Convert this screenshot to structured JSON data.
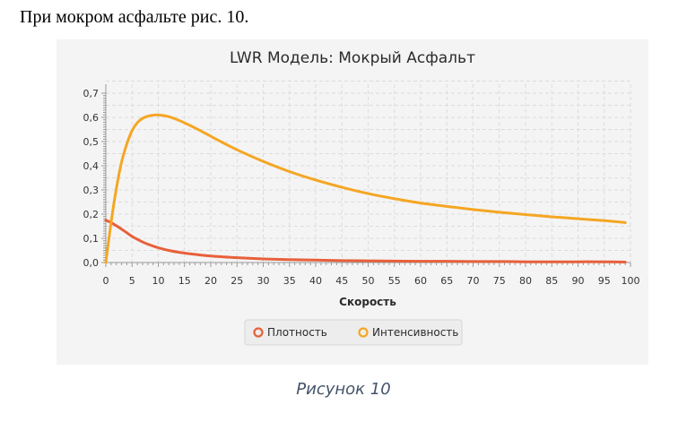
{
  "document": {
    "intro_text": "При мокром асфальте рис. 10.",
    "caption": "Рисунок 10",
    "caption_color": "#44546a"
  },
  "chart_data": {
    "type": "line",
    "title": "LWR Модель: Мокрый Асфальт",
    "xlabel": "Скорость",
    "ylabel": "",
    "xlim": [
      0,
      100
    ],
    "ylim": [
      0,
      0.7
    ],
    "x_ticks": [
      "0",
      "5",
      "10",
      "15",
      "20",
      "25",
      "30",
      "35",
      "40",
      "45",
      "50",
      "55",
      "60",
      "65",
      "70",
      "75",
      "80",
      "85",
      "90",
      "95",
      "100"
    ],
    "y_ticks": [
      "0,0",
      "0,1",
      "0,2",
      "0,3",
      "0,4",
      "0,5",
      "0,6",
      "0,7"
    ],
    "grid": true,
    "legend_position": "bottom",
    "x": [
      0,
      1,
      2,
      3,
      4,
      5,
      6,
      7,
      8,
      9,
      10,
      12,
      14,
      16,
      18,
      20,
      22,
      25,
      30,
      35,
      40,
      45,
      50,
      55,
      60,
      65,
      70,
      75,
      80,
      85,
      90,
      95,
      99
    ],
    "series": [
      {
        "name": "Плотность",
        "color": "#e8603a",
        "values": [
          0.175,
          0.165,
          0.152,
          0.138,
          0.123,
          0.108,
          0.096,
          0.085,
          0.076,
          0.068,
          0.061,
          0.05,
          0.042,
          0.036,
          0.031,
          0.027,
          0.024,
          0.02,
          0.015,
          0.012,
          0.01,
          0.008,
          0.007,
          0.006,
          0.005,
          0.005,
          0.004,
          0.004,
          0.003,
          0.003,
          0.003,
          0.003,
          0.002
        ]
      },
      {
        "name": "Интенсивность",
        "color": "#f5a623",
        "values": [
          0.0,
          0.165,
          0.305,
          0.415,
          0.49,
          0.545,
          0.578,
          0.596,
          0.605,
          0.609,
          0.61,
          0.603,
          0.587,
          0.567,
          0.545,
          0.522,
          0.499,
          0.466,
          0.418,
          0.376,
          0.341,
          0.311,
          0.285,
          0.264,
          0.246,
          0.232,
          0.219,
          0.208,
          0.198,
          0.189,
          0.181,
          0.173,
          0.165
        ]
      }
    ]
  }
}
